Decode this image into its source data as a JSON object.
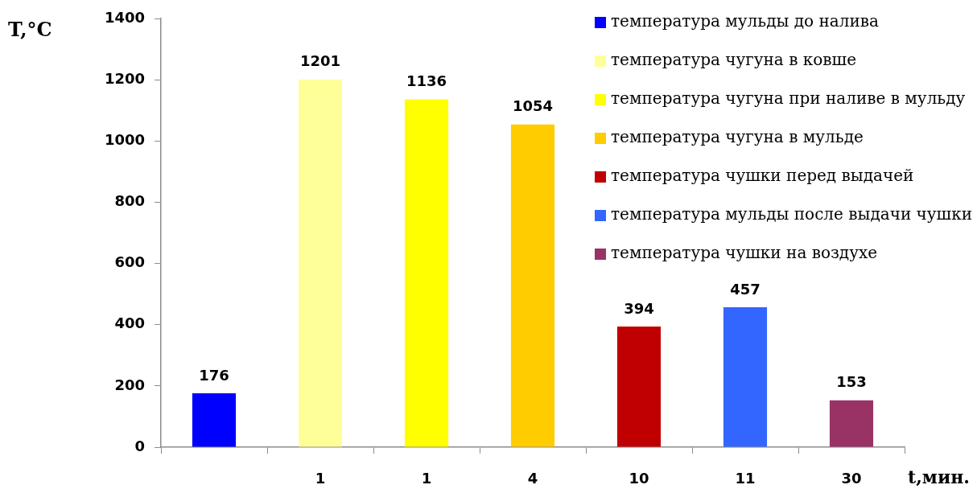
{
  "chart_data": {
    "type": "bar",
    "ylabel": "T,°C",
    "xlabel": "t,мин.",
    "categories": [
      null,
      "1",
      "1",
      "4",
      "10",
      "11",
      "30"
    ],
    "series": [
      {
        "name": "температура мульды до налива",
        "color": "#0000ff",
        "values": [
          176,
          null,
          null,
          null,
          null,
          null,
          null
        ]
      },
      {
        "name": "температура чугуна в ковше",
        "color": "#ffff99",
        "values": [
          null,
          1201,
          null,
          null,
          null,
          null,
          null
        ]
      },
      {
        "name": "температура чугуна при наливе в мульду",
        "color": "#ffff00",
        "values": [
          null,
          null,
          1136,
          null,
          null,
          null,
          null
        ]
      },
      {
        "name": "температура чугуна в мульде",
        "color": "#ffcc00",
        "values": [
          null,
          null,
          null,
          1054,
          null,
          null,
          null
        ]
      },
      {
        "name": "температура чушки перед выдачей",
        "color": "#c00000",
        "values": [
          null,
          null,
          null,
          null,
          394,
          null,
          null
        ]
      },
      {
        "name": "температура мульды после выдачи чушки",
        "color": "#3366ff",
        "values": [
          null,
          null,
          null,
          null,
          null,
          457,
          null
        ]
      },
      {
        "name": "температура чушки на воздухе",
        "color": "#993366",
        "values": [
          null,
          null,
          null,
          null,
          null,
          null,
          153
        ]
      }
    ],
    "ylim": [
      0,
      1400
    ],
    "yticks": [
      0,
      200,
      400,
      600,
      800,
      1000,
      1200,
      1400
    ],
    "legend": "top right",
    "data_labels": true
  }
}
